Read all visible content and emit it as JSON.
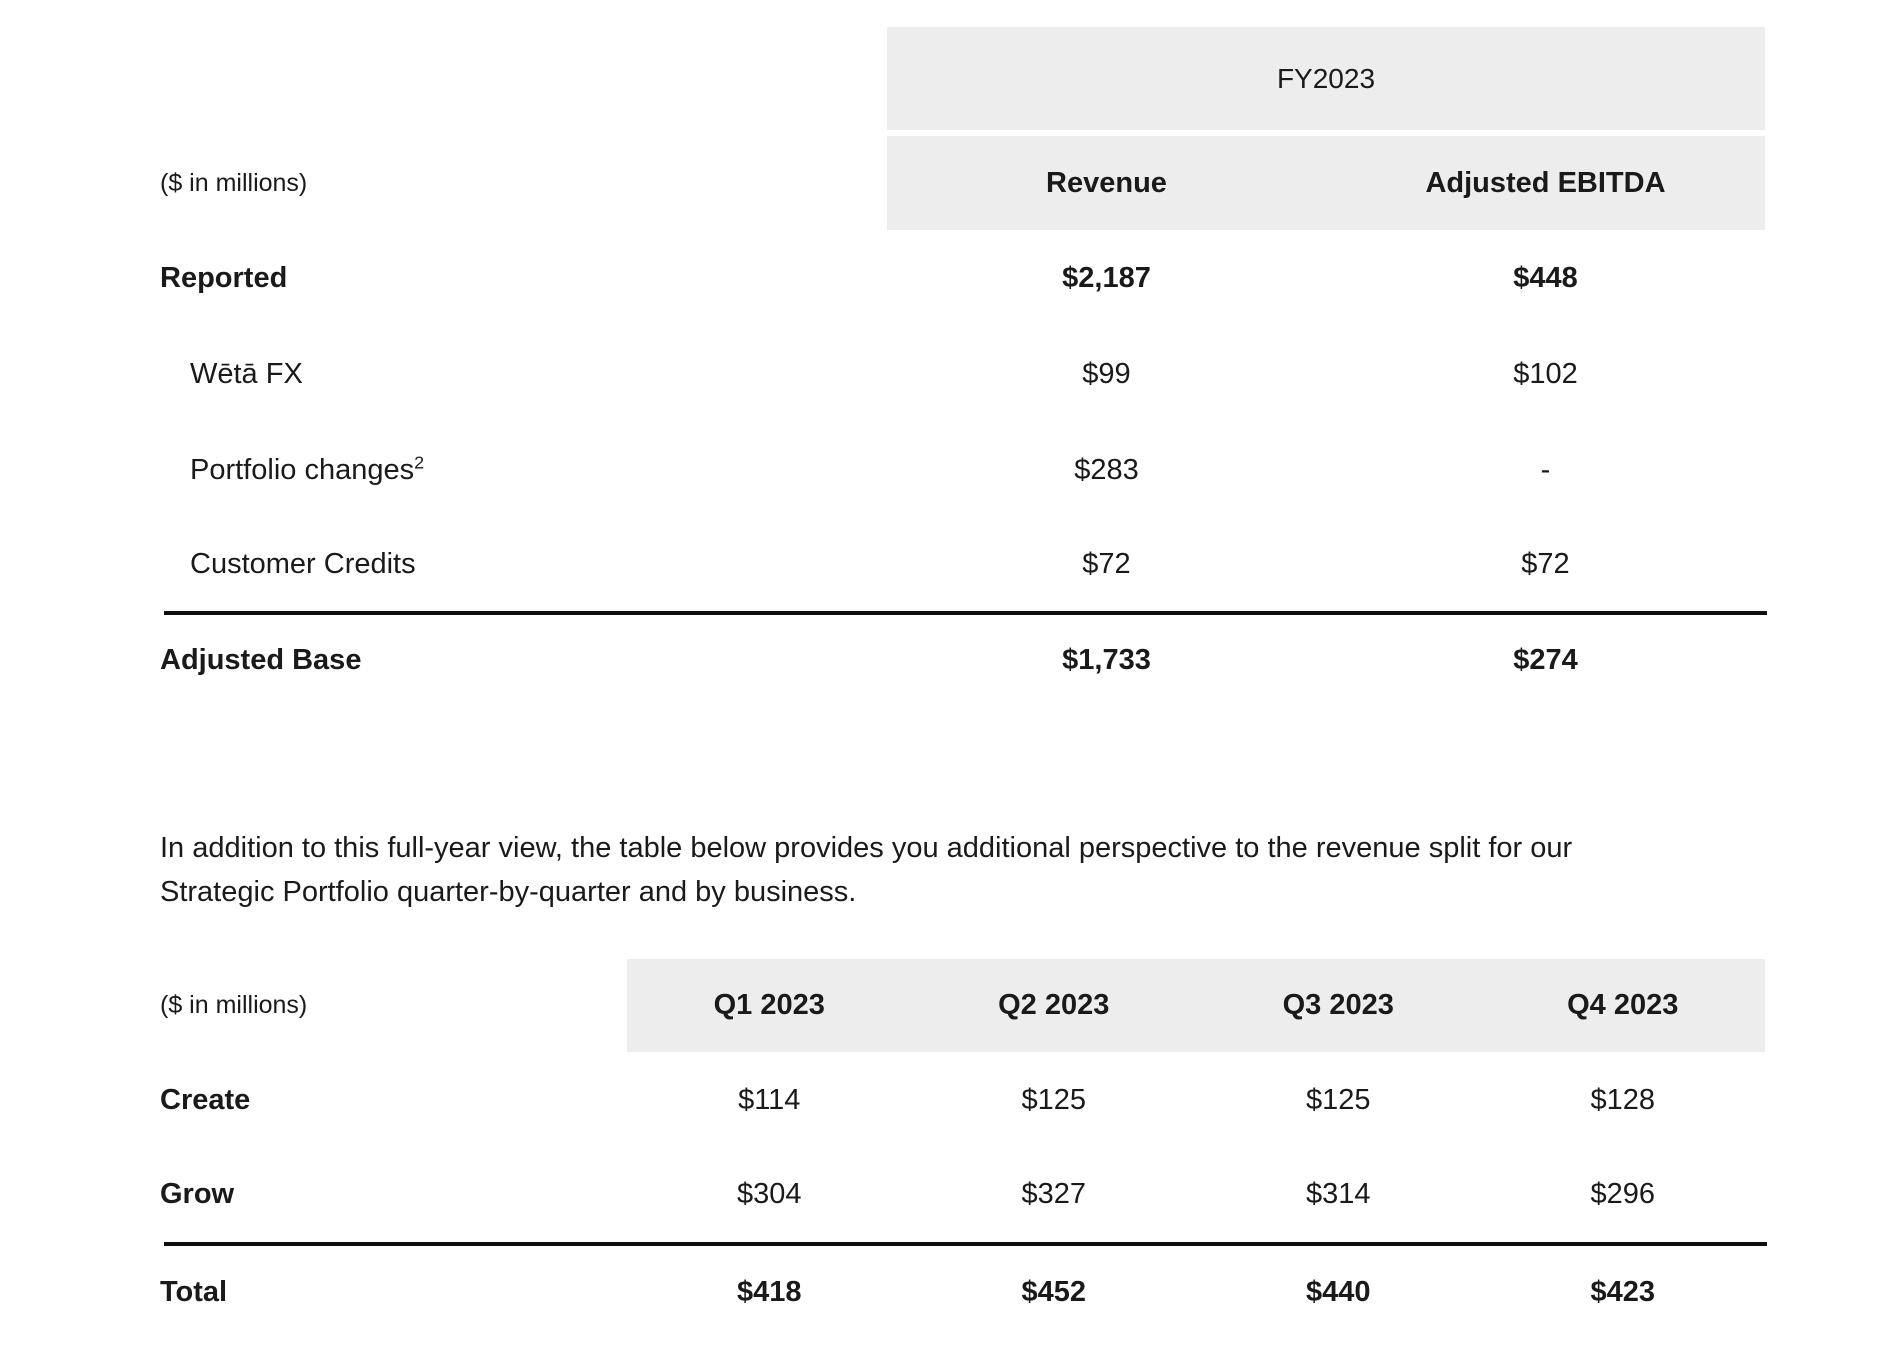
{
  "colors": {
    "header_band_bg": "#ededed",
    "text": "#1a1a1a",
    "divider": "#0f0f0f"
  },
  "table1": {
    "unit_label": "($ in millions)",
    "group_header": "FY2023",
    "columns": [
      "Revenue",
      "Adjusted EBITDA"
    ],
    "rows": [
      {
        "label": "Reported",
        "values": [
          "$2,187",
          "$448"
        ]
      },
      {
        "label": "Wētā FX",
        "values": [
          "$99",
          "$102"
        ]
      },
      {
        "label": "Portfolio changes",
        "label_sup": "2",
        "values": [
          "$283",
          "-"
        ]
      },
      {
        "label": "Customer Credits",
        "values": [
          "$72",
          "$72"
        ]
      }
    ],
    "total_row": {
      "label": "Adjusted Base",
      "values": [
        "$1,733",
        "$274"
      ]
    }
  },
  "paragraph": "In addition to this full-year view, the table below provides you additional perspective to the revenue split for our Strategic Portfolio quarter-by-quarter and by business.",
  "table2": {
    "unit_label": "($ in millions)",
    "columns": [
      "Q1 2023",
      "Q2 2023",
      "Q3 2023",
      "Q4 2023"
    ],
    "rows": [
      {
        "label": "Create",
        "values": [
          "$114",
          "$125",
          "$125",
          "$128"
        ]
      },
      {
        "label": "Grow",
        "values": [
          "$304",
          "$327",
          "$314",
          "$296"
        ]
      }
    ],
    "total_row": {
      "label": "Total",
      "values": [
        "$418",
        "$452",
        "$440",
        "$423"
      ]
    }
  }
}
